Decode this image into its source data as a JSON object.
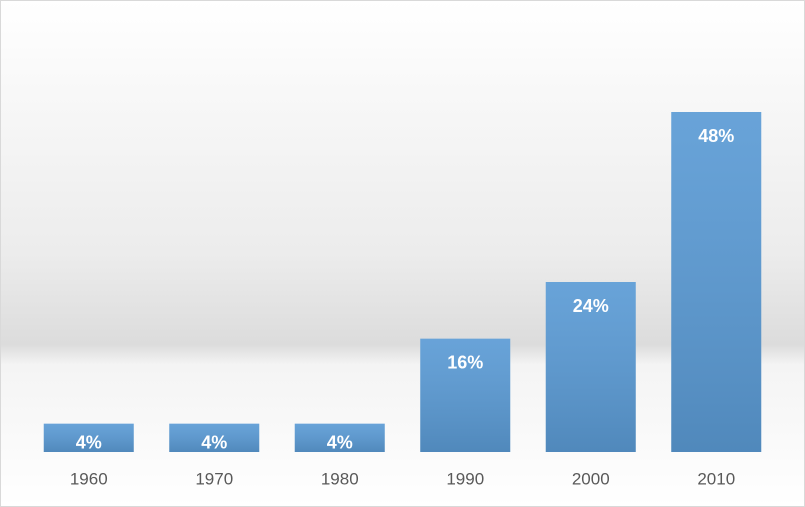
{
  "chart_data": {
    "type": "bar",
    "categories": [
      "1960",
      "1970",
      "1980",
      "1990",
      "2000",
      "2010"
    ],
    "values": [
      4,
      4,
      4,
      16,
      24,
      48
    ],
    "value_labels": [
      "4%",
      "4%",
      "4%",
      "16%",
      "24%",
      "48%"
    ],
    "color": "#5b9bd5"
  }
}
